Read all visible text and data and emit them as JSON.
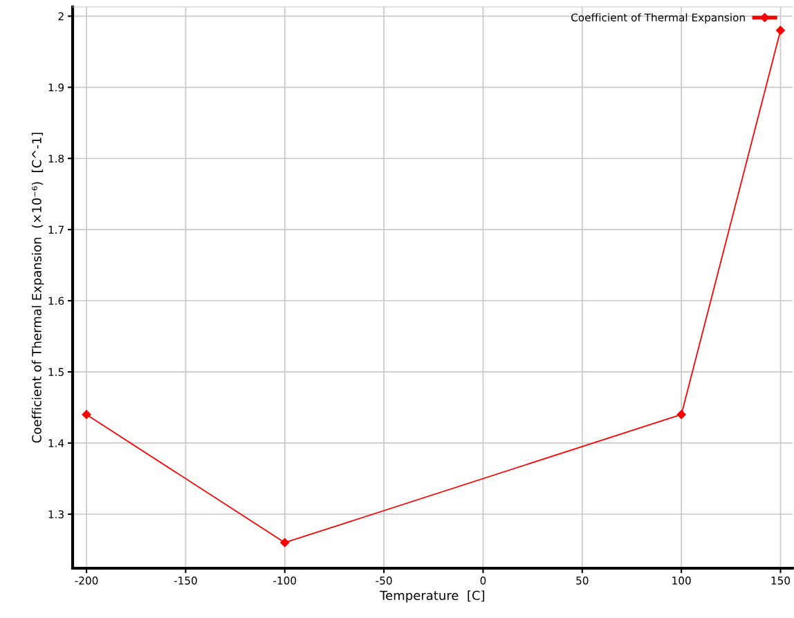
{
  "chart_data": {
    "type": "line",
    "xlabel": "Temperature  [C]",
    "ylabel": "Coefficient of Thermal Expansion  (×10⁻⁶)  [C^-1]",
    "x": [
      -200,
      -100,
      100,
      150
    ],
    "series": [
      {
        "name": "Coefficient of Thermal Expansion",
        "color": "#ff0000",
        "values": [
          1.44,
          1.26,
          1.44,
          1.98
        ]
      }
    ],
    "xlim": [
      -207,
      156
    ],
    "xticks": [
      -200,
      -150,
      -100,
      -50,
      0,
      50,
      100,
      150
    ],
    "ylim": [
      1.224,
      2.013
    ],
    "yticks": [
      {
        "value": 1.3,
        "label": "1.3"
      },
      {
        "value": 1.4,
        "label": "1.4"
      },
      {
        "value": 1.5,
        "label": "1.5"
      },
      {
        "value": 1.6,
        "label": "1.6"
      },
      {
        "value": 1.7,
        "label": "1.7"
      },
      {
        "value": 1.8,
        "label": "1.8"
      },
      {
        "value": 1.9,
        "label": "1.9"
      },
      {
        "value": 2,
        "label": "2"
      }
    ],
    "grid": true,
    "legend": "top right",
    "marker": "diamond",
    "line_style": "solid"
  }
}
